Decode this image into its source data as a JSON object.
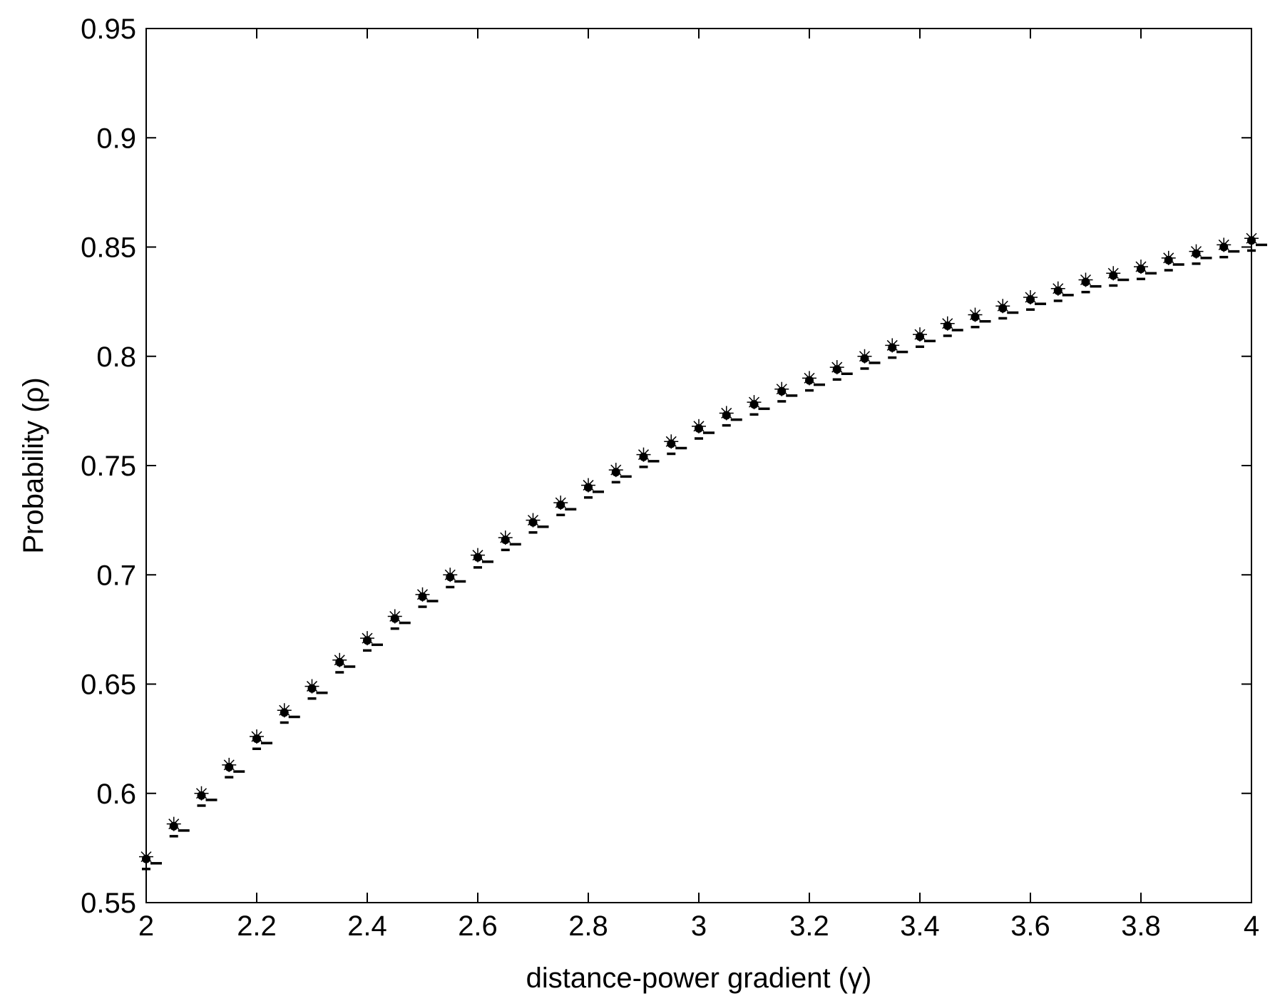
{
  "chart_data": {
    "type": "scatter",
    "title": "",
    "xlabel": "distance-power gradient (γ)",
    "ylabel": "Probability (ρ)",
    "xlim": [
      2,
      4
    ],
    "ylim": [
      0.55,
      0.95
    ],
    "xticks": [
      "2",
      "2.2",
      "2.4",
      "2.6",
      "2.8",
      "3",
      "3.2",
      "3.4",
      "3.6",
      "3.8",
      "4"
    ],
    "yticks": [
      "0.55",
      "0.6",
      "0.65",
      "0.7",
      "0.75",
      "0.8",
      "0.85",
      "0.9",
      "0.95"
    ],
    "grid": false,
    "x": [
      2.0,
      2.05,
      2.1,
      2.15,
      2.2,
      2.25,
      2.3,
      2.35,
      2.4,
      2.45,
      2.5,
      2.55,
      2.6,
      2.65,
      2.7,
      2.75,
      2.8,
      2.85,
      2.9,
      2.95,
      3.0,
      3.05,
      3.1,
      3.15,
      3.2,
      3.25,
      3.3,
      3.35,
      3.4,
      3.45,
      3.5,
      3.55,
      3.6,
      3.65,
      3.7,
      3.75,
      3.8,
      3.85,
      3.9,
      3.95,
      4.0
    ],
    "series": [
      {
        "marker": "star",
        "values": [
          0.571,
          0.586,
          0.6,
          0.613,
          0.626,
          0.638,
          0.649,
          0.661,
          0.671,
          0.681,
          0.691,
          0.7,
          0.709,
          0.717,
          0.725,
          0.733,
          0.741,
          0.748,
          0.755,
          0.761,
          0.768,
          0.774,
          0.779,
          0.785,
          0.79,
          0.795,
          0.8,
          0.805,
          0.81,
          0.815,
          0.819,
          0.823,
          0.827,
          0.831,
          0.835,
          0.838,
          0.841,
          0.845,
          0.848,
          0.851,
          0.854
        ]
      },
      {
        "marker": "dot",
        "values": [
          0.57,
          0.585,
          0.599,
          0.612,
          0.625,
          0.637,
          0.648,
          0.66,
          0.67,
          0.68,
          0.69,
          0.699,
          0.708,
          0.716,
          0.724,
          0.732,
          0.74,
          0.747,
          0.754,
          0.76,
          0.767,
          0.773,
          0.778,
          0.784,
          0.789,
          0.794,
          0.799,
          0.804,
          0.809,
          0.814,
          0.818,
          0.822,
          0.826,
          0.83,
          0.834,
          0.837,
          0.84,
          0.844,
          0.847,
          0.85,
          0.853
        ]
      },
      {
        "marker": "dash",
        "values": [
          0.568,
          0.583,
          0.597,
          0.61,
          0.623,
          0.635,
          0.646,
          0.658,
          0.668,
          0.678,
          0.688,
          0.697,
          0.706,
          0.714,
          0.722,
          0.73,
          0.738,
          0.745,
          0.752,
          0.758,
          0.765,
          0.771,
          0.776,
          0.782,
          0.787,
          0.792,
          0.797,
          0.802,
          0.807,
          0.812,
          0.816,
          0.82,
          0.824,
          0.828,
          0.832,
          0.835,
          0.838,
          0.842,
          0.845,
          0.848,
          0.851
        ]
      }
    ]
  }
}
